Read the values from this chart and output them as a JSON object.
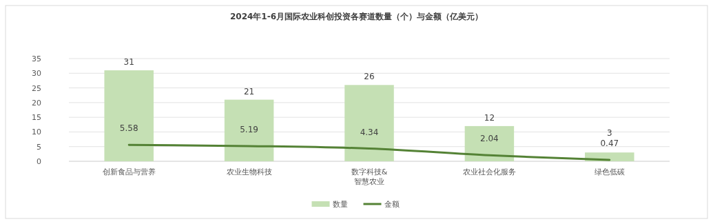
{
  "chart_data": {
    "type": "bar",
    "title": "2024年1-6月国际农业科创投资各赛道数量（个）与金额（亿美元）",
    "categories": [
      "创新食品与营养",
      "农业生物科技",
      "数字科技&智慧农业",
      "农业社会化服务",
      "绿色低碳"
    ],
    "series": [
      {
        "name": "数量",
        "color": "#c5e0b4",
        "values": [
          31,
          21,
          26,
          12,
          3
        ]
      },
      {
        "name": "金额",
        "type": "line",
        "color": "#548235",
        "values": [
          5.58,
          5.19,
          4.34,
          2.04,
          0.47
        ]
      }
    ],
    "ylim": [
      0,
      35
    ],
    "yticks": [
      0,
      5,
      10,
      15,
      20,
      25,
      30,
      35
    ],
    "grid": "y",
    "legend": "bottom",
    "data_labels": true
  }
}
